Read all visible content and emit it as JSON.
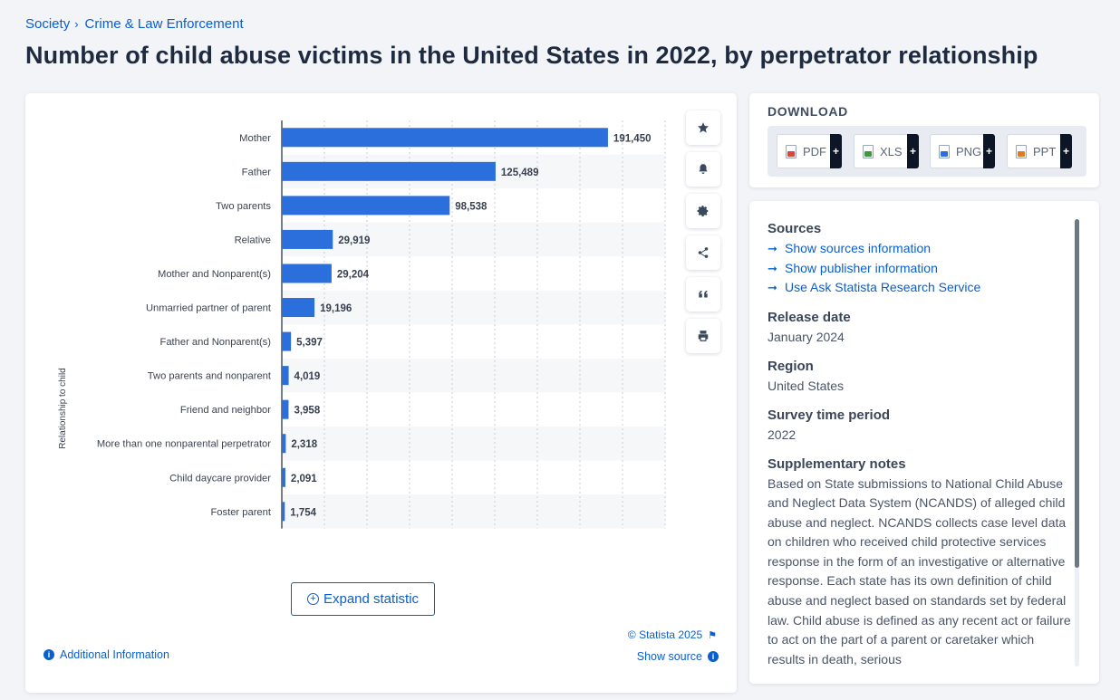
{
  "breadcrumb": [
    "Society",
    "Crime & Law Enforcement"
  ],
  "title": "Number of child abuse victims in the United States in 2022, by perpetrator relationship",
  "chart_data": {
    "type": "bar",
    "orientation": "horizontal",
    "categories": [
      "Mother",
      "Father",
      "Two parents",
      "Relative",
      "Mother and Nonparent(s)",
      "Unmarried partner of parent",
      "Father and Nonparent(s)",
      "Two parents and nonparent",
      "Friend and neighbor",
      "More than one nonparental perpetrator",
      "Child daycare provider",
      "Foster parent"
    ],
    "values": [
      191450,
      125489,
      98538,
      29919,
      29204,
      19196,
      5397,
      4019,
      3958,
      2318,
      2091,
      1754
    ],
    "value_labels": [
      "191,450",
      "125,489",
      "98,538",
      "29,919",
      "29,204",
      "19,196",
      "5,397",
      "4,019",
      "3,958",
      "2,318",
      "2,091",
      "1,754"
    ],
    "ylabel": "Relationship to child",
    "xlim": [
      0,
      225000
    ],
    "bar_color": "#2a6fdb",
    "grid": true
  },
  "toolbar": {
    "icons": [
      "star-icon",
      "bell-icon",
      "gear-icon",
      "share-icon",
      "quote-icon",
      "print-icon"
    ]
  },
  "expand_label": "Expand statistic",
  "copyright": "© Statista 2025",
  "additional_info": "Additional Information",
  "show_source": "Show source",
  "download": {
    "title": "DOWNLOAD",
    "buttons": [
      {
        "label": "PDF",
        "color": "#d9463b"
      },
      {
        "label": "XLS",
        "color": "#3c9a3c"
      },
      {
        "label": "PNG",
        "color": "#2a6fdb"
      },
      {
        "label": "PPT",
        "color": "#e07b1f"
      }
    ]
  },
  "meta": {
    "sources_title": "Sources",
    "links": [
      "Show sources information",
      "Show publisher information",
      "Use Ask Statista Research Service"
    ],
    "release_title": "Release date",
    "release_value": "January 2024",
    "region_title": "Region",
    "region_value": "United States",
    "survey_title": "Survey time period",
    "survey_value": "2022",
    "notes_title": "Supplementary notes",
    "notes_text": "Based on State submissions to National Child Abuse and Neglect Data System (NCANDS) of alleged child abuse and neglect. NCANDS collects case level data on children who received child protective services response in the form of an investigative or alternative response. Each state has its own definition of child abuse and neglect based on standards set by federal law. Child abuse is defined as any recent act or failure to act on the part of a parent or caretaker which results in death, serious"
  }
}
